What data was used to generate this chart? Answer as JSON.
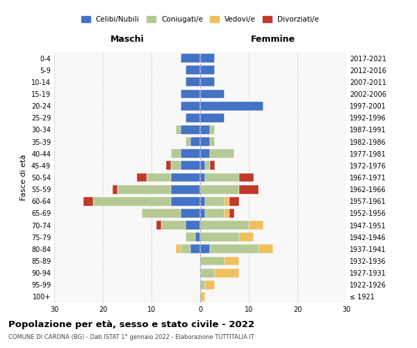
{
  "age_groups": [
    "100+",
    "95-99",
    "90-94",
    "85-89",
    "80-84",
    "75-79",
    "70-74",
    "65-69",
    "60-64",
    "55-59",
    "50-54",
    "45-49",
    "40-44",
    "35-39",
    "30-34",
    "25-29",
    "20-24",
    "15-19",
    "10-14",
    "5-9",
    "0-4"
  ],
  "birth_years": [
    "≤ 1921",
    "1922-1926",
    "1927-1931",
    "1932-1936",
    "1937-1941",
    "1942-1946",
    "1947-1951",
    "1952-1956",
    "1957-1961",
    "1962-1966",
    "1967-1971",
    "1972-1976",
    "1977-1981",
    "1982-1986",
    "1987-1991",
    "1992-1996",
    "1997-2001",
    "2002-2006",
    "2007-2011",
    "2012-2016",
    "2017-2021"
  ],
  "males": {
    "celibi": [
      0,
      0,
      0,
      0,
      2,
      1,
      3,
      4,
      6,
      6,
      6,
      4,
      4,
      2,
      4,
      3,
      4,
      4,
      3,
      3,
      4
    ],
    "coniugati": [
      0,
      0,
      0,
      0,
      2,
      2,
      5,
      8,
      16,
      11,
      5,
      2,
      2,
      1,
      1,
      0,
      0,
      0,
      0,
      0,
      0
    ],
    "vedovi": [
      0,
      0,
      0,
      0,
      1,
      0,
      0,
      0,
      0,
      0,
      0,
      0,
      0,
      0,
      0,
      0,
      0,
      0,
      0,
      0,
      0
    ],
    "divorziati": [
      0,
      0,
      0,
      0,
      0,
      0,
      1,
      0,
      2,
      1,
      2,
      1,
      0,
      0,
      0,
      0,
      0,
      0,
      0,
      0,
      0
    ]
  },
  "females": {
    "nubili": [
      0,
      0,
      0,
      0,
      2,
      0,
      0,
      1,
      1,
      0,
      1,
      1,
      2,
      2,
      2,
      5,
      13,
      5,
      3,
      3,
      3
    ],
    "coniugate": [
      0,
      1,
      3,
      5,
      10,
      8,
      10,
      4,
      4,
      8,
      7,
      1,
      5,
      1,
      1,
      0,
      0,
      0,
      0,
      0,
      0
    ],
    "vedove": [
      1,
      2,
      5,
      3,
      3,
      3,
      3,
      1,
      1,
      0,
      0,
      0,
      0,
      0,
      0,
      0,
      0,
      0,
      0,
      0,
      0
    ],
    "divorziate": [
      0,
      0,
      0,
      0,
      0,
      0,
      0,
      1,
      2,
      4,
      3,
      1,
      0,
      0,
      0,
      0,
      0,
      0,
      0,
      0,
      0
    ]
  },
  "colors": {
    "celibi_nubili": "#4472c4",
    "coniugati": "#b5c994",
    "vedovi": "#f0c060",
    "divorziati": "#c0392b"
  },
  "xlim": 30,
  "title": "Popolazione per età, sesso e stato civile - 2022",
  "subtitle": "COMUNE DI CARONA (BG) - Dati ISTAT 1° gennaio 2022 - Elaborazione TUTTITALIA.IT",
  "xlabel_left": "Maschi",
  "xlabel_right": "Femmine",
  "ylabel_left": "Fasce di età",
  "background_color": "#f8f8f8",
  "legend_labels": [
    "Celibi/Nubili",
    "Coniugati/e",
    "Vedovi/e",
    "Divorziati/e"
  ],
  "grid_color": "#cccccc",
  "bar_height": 0.75
}
